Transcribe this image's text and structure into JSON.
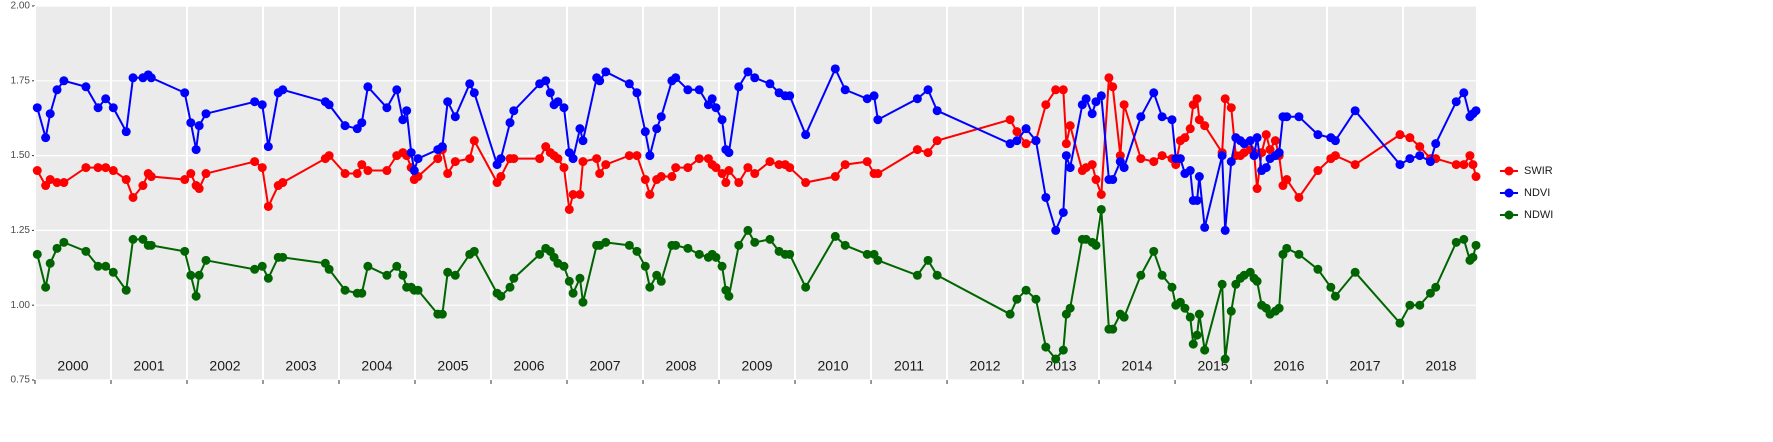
{
  "chart_data": {
    "type": "line",
    "x": [
      2000.03,
      2000.14,
      2000.2,
      2000.29,
      2000.38,
      2000.67,
      2000.83,
      2000.93,
      2001.03,
      2001.2,
      2001.29,
      2001.42,
      2001.49,
      2001.53,
      2001.97,
      2002.05,
      2002.12,
      2002.16,
      2002.25,
      2002.89,
      2002.99,
      2003.07,
      2003.2,
      2003.26,
      2003.82,
      2003.87,
      2004.08,
      2004.24,
      2004.3,
      2004.38,
      2004.63,
      2004.76,
      2004.84,
      2004.89,
      2004.95,
      2004.99,
      2005.04,
      2005.3,
      2005.36,
      2005.43,
      2005.53,
      2005.72,
      2005.78,
      2006.08,
      2006.13,
      2006.25,
      2006.3,
      2006.64,
      2006.72,
      2006.78,
      2006.83,
      2006.88,
      2006.96,
      2007.03,
      2007.08,
      2007.17,
      2007.21,
      2007.39,
      2007.43,
      2007.51,
      2007.82,
      2007.92,
      2008.03,
      2008.09,
      2008.18,
      2008.24,
      2008.38,
      2008.43,
      2008.59,
      2008.74,
      2008.86,
      2008.91,
      2008.96,
      2009.04,
      2009.09,
      2009.13,
      2009.26,
      2009.38,
      2009.47,
      2009.67,
      2009.79,
      2009.87,
      2009.93,
      2010.14,
      2010.53,
      2010.66,
      2010.95,
      2011.04,
      2011.09,
      2011.61,
      2011.75,
      2011.87,
      2012.83,
      2012.92,
      2013.04,
      2013.17,
      2013.3,
      2013.43,
      2013.53,
      2013.57,
      2013.62,
      2013.78,
      2013.83,
      2013.91,
      2013.96,
      2014.03,
      2014.13,
      2014.18,
      2014.28,
      2014.33,
      2014.55,
      2014.72,
      2014.83,
      2014.96,
      2015.01,
      2015.07,
      2015.13,
      2015.2,
      2015.24,
      2015.29,
      2015.32,
      2015.39,
      2015.62,
      2015.66,
      2015.74,
      2015.8,
      2015.86,
      2015.91,
      2015.99,
      2016.04,
      2016.08,
      2016.14,
      2016.2,
      2016.25,
      2016.32,
      2016.37,
      2016.42,
      2016.47,
      2016.63,
      2016.88,
      2017.05,
      2017.11,
      2017.37,
      2017.96,
      2018.09,
      2018.22,
      2018.36,
      2018.43,
      2018.7,
      2018.8,
      2018.88,
      2018.92,
      2018.96
    ],
    "series": [
      {
        "name": "SWIR",
        "color": "#ff0000",
        "values": [
          1.45,
          1.4,
          1.42,
          1.41,
          1.41,
          1.46,
          1.46,
          1.46,
          1.45,
          1.42,
          1.36,
          1.4,
          1.44,
          1.43,
          1.42,
          1.44,
          1.4,
          1.39,
          1.44,
          1.48,
          1.46,
          1.33,
          1.4,
          1.41,
          1.49,
          1.5,
          1.44,
          1.44,
          1.47,
          1.45,
          1.45,
          1.5,
          1.51,
          1.5,
          1.46,
          1.42,
          1.43,
          1.49,
          1.52,
          1.44,
          1.48,
          1.49,
          1.55,
          1.41,
          1.43,
          1.49,
          1.49,
          1.49,
          1.53,
          1.51,
          1.5,
          1.49,
          1.46,
          1.32,
          1.37,
          1.37,
          1.48,
          1.49,
          1.44,
          1.47,
          1.5,
          1.5,
          1.42,
          1.37,
          1.42,
          1.43,
          1.43,
          1.46,
          1.46,
          1.49,
          1.49,
          1.47,
          1.46,
          1.44,
          1.41,
          1.45,
          1.41,
          1.46,
          1.44,
          1.48,
          1.47,
          1.47,
          1.46,
          1.41,
          1.43,
          1.47,
          1.48,
          1.44,
          1.44,
          1.52,
          1.51,
          1.55,
          1.62,
          1.58,
          1.54,
          1.55,
          1.67,
          1.72,
          1.72,
          1.54,
          1.6,
          1.45,
          1.46,
          1.47,
          1.42,
          1.37,
          1.76,
          1.73,
          1.5,
          1.67,
          1.49,
          1.48,
          1.5,
          1.49,
          1.47,
          1.55,
          1.56,
          1.59,
          1.67,
          1.69,
          1.62,
          1.6,
          1.51,
          1.69,
          1.66,
          1.5,
          1.5,
          1.51,
          1.52,
          1.51,
          1.39,
          1.51,
          1.57,
          1.52,
          1.55,
          1.5,
          1.4,
          1.42,
          1.36,
          1.45,
          1.49,
          1.5,
          1.47,
          1.57,
          1.56,
          1.53,
          1.49,
          1.49,
          1.47,
          1.47,
          1.5,
          1.47,
          1.43
        ]
      },
      {
        "name": "NDVI",
        "color": "#0000ff",
        "values": [
          1.66,
          1.56,
          1.64,
          1.72,
          1.75,
          1.73,
          1.66,
          1.69,
          1.66,
          1.58,
          1.76,
          1.76,
          1.77,
          1.76,
          1.71,
          1.61,
          1.52,
          1.6,
          1.64,
          1.68,
          1.67,
          1.53,
          1.71,
          1.72,
          1.68,
          1.67,
          1.6,
          1.59,
          1.61,
          1.73,
          1.66,
          1.72,
          1.62,
          1.65,
          1.51,
          1.45,
          1.49,
          1.52,
          1.53,
          1.68,
          1.63,
          1.74,
          1.71,
          1.47,
          1.49,
          1.61,
          1.65,
          1.74,
          1.75,
          1.71,
          1.67,
          1.68,
          1.66,
          1.51,
          1.49,
          1.59,
          1.55,
          1.76,
          1.75,
          1.78,
          1.74,
          1.71,
          1.58,
          1.5,
          1.59,
          1.63,
          1.75,
          1.76,
          1.72,
          1.72,
          1.67,
          1.69,
          1.66,
          1.62,
          1.52,
          1.51,
          1.73,
          1.78,
          1.76,
          1.74,
          1.71,
          1.7,
          1.7,
          1.57,
          1.79,
          1.72,
          1.69,
          1.7,
          1.62,
          1.69,
          1.72,
          1.65,
          1.54,
          1.55,
          1.59,
          1.55,
          1.36,
          1.25,
          1.31,
          1.5,
          1.46,
          1.67,
          1.69,
          1.64,
          1.68,
          1.7,
          1.42,
          1.42,
          1.48,
          1.46,
          1.63,
          1.71,
          1.63,
          1.62,
          1.49,
          1.49,
          1.44,
          1.45,
          1.35,
          1.35,
          1.43,
          1.26,
          1.5,
          1.25,
          1.48,
          1.56,
          1.55,
          1.54,
          1.55,
          1.5,
          1.56,
          1.45,
          1.46,
          1.49,
          1.5,
          1.51,
          1.63,
          1.63,
          1.63,
          1.57,
          1.56,
          1.55,
          1.65,
          1.47,
          1.49,
          1.5,
          1.48,
          1.54,
          1.68,
          1.71,
          1.63,
          1.64,
          1.65
        ]
      },
      {
        "name": "NDWI",
        "color": "#006400",
        "values": [
          1.17,
          1.06,
          1.14,
          1.19,
          1.21,
          1.18,
          1.13,
          1.13,
          1.11,
          1.05,
          1.22,
          1.22,
          1.2,
          1.2,
          1.18,
          1.1,
          1.03,
          1.1,
          1.15,
          1.12,
          1.13,
          1.09,
          1.16,
          1.16,
          1.14,
          1.12,
          1.05,
          1.04,
          1.04,
          1.13,
          1.1,
          1.13,
          1.1,
          1.06,
          1.06,
          1.05,
          1.05,
          0.97,
          0.97,
          1.11,
          1.1,
          1.17,
          1.18,
          1.04,
          1.03,
          1.06,
          1.09,
          1.17,
          1.19,
          1.18,
          1.16,
          1.14,
          1.13,
          1.08,
          1.04,
          1.09,
          1.01,
          1.2,
          1.2,
          1.21,
          1.2,
          1.18,
          1.13,
          1.06,
          1.1,
          1.08,
          1.2,
          1.2,
          1.19,
          1.17,
          1.16,
          1.17,
          1.16,
          1.13,
          1.05,
          1.03,
          1.2,
          1.25,
          1.21,
          1.22,
          1.18,
          1.17,
          1.17,
          1.06,
          1.23,
          1.2,
          1.17,
          1.17,
          1.15,
          1.1,
          1.15,
          1.1,
          0.97,
          1.02,
          1.05,
          1.02,
          0.86,
          0.82,
          0.85,
          0.97,
          0.99,
          1.22,
          1.22,
          1.21,
          1.2,
          1.32,
          0.92,
          0.92,
          0.97,
          0.96,
          1.1,
          1.18,
          1.1,
          1.06,
          1.0,
          1.01,
          0.99,
          0.96,
          0.87,
          0.9,
          0.97,
          0.85,
          1.07,
          0.82,
          0.98,
          1.07,
          1.09,
          1.1,
          1.11,
          1.09,
          1.08,
          1.0,
          0.99,
          0.97,
          0.98,
          0.99,
          1.17,
          1.19,
          1.17,
          1.12,
          1.06,
          1.03,
          1.11,
          0.94,
          1.0,
          1.0,
          1.04,
          1.06,
          1.21,
          1.22,
          1.15,
          1.16,
          1.2
        ]
      }
    ],
    "xlim": [
      2000,
      2018.96
    ],
    "xticks": [
      2000,
      2001,
      2002,
      2003,
      2004,
      2005,
      2006,
      2007,
      2008,
      2009,
      2010,
      2011,
      2012,
      2013,
      2014,
      2015,
      2016,
      2017,
      2018
    ],
    "ylim": [
      0.75,
      2.0
    ],
    "yticks": [
      0.75,
      {
        "value": 1.0,
        "label": "1.00"
      },
      1.25,
      {
        "value": 1.5,
        "label": "1.50"
      },
      1.75,
      {
        "value": 2.0,
        "label": "2.00"
      }
    ],
    "grid": true,
    "legend": "right"
  }
}
